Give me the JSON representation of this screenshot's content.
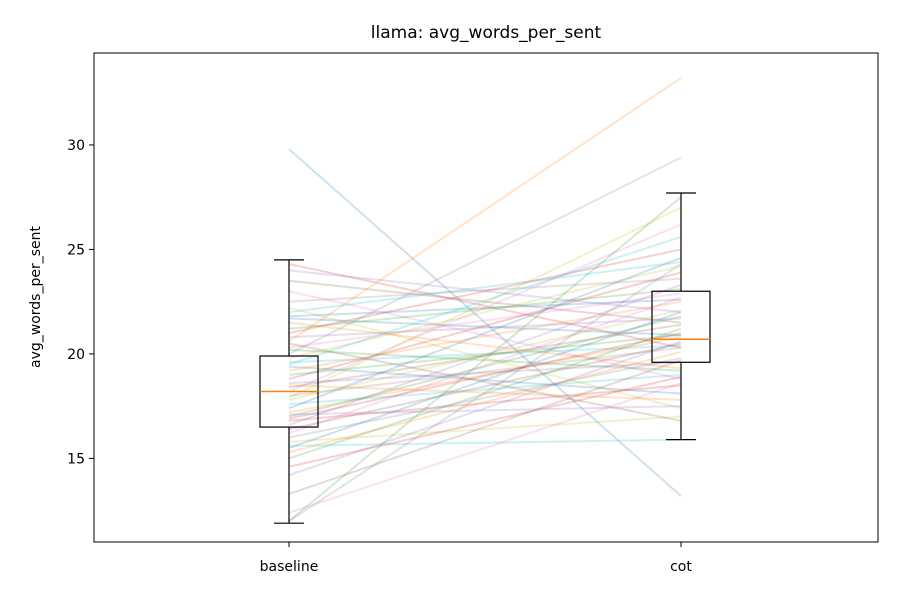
{
  "chart_data": {
    "type": "box-with-paired-lines",
    "title": "llama: avg_words_per_sent",
    "xlabel": "",
    "ylabel": "avg_words_per_sent",
    "categories": [
      "baseline",
      "cot"
    ],
    "ylim": [
      11.0,
      34.4
    ],
    "yticks": [
      15,
      20,
      25,
      30
    ],
    "grid": false,
    "boxes": [
      {
        "category": "baseline",
        "whisker_low": 11.9,
        "q1": 16.5,
        "median": 18.2,
        "q3": 19.9,
        "whisker_high": 24.5
      },
      {
        "category": "cot",
        "whisker_low": 15.9,
        "q1": 19.6,
        "median": 20.7,
        "q3": 23.0,
        "whisker_high": 27.7
      }
    ],
    "pairs": [
      [
        29.8,
        13.2
      ],
      [
        20.6,
        33.2
      ],
      [
        12.0,
        27.5
      ],
      [
        24.3,
        20.3
      ],
      [
        24.0,
        22.0
      ],
      [
        23.5,
        21.5
      ],
      [
        23.0,
        18.8
      ],
      [
        22.5,
        23.6
      ],
      [
        22.2,
        17.4
      ],
      [
        22.0,
        24.4
      ],
      [
        21.7,
        20.9
      ],
      [
        21.5,
        19.3
      ],
      [
        21.2,
        23.1
      ],
      [
        21.0,
        25.0
      ],
      [
        20.8,
        21.7
      ],
      [
        20.5,
        16.8
      ],
      [
        20.3,
        22.9
      ],
      [
        20.0,
        29.4
      ],
      [
        19.8,
        24.2
      ],
      [
        19.6,
        20.4
      ],
      [
        19.4,
        18.1
      ],
      [
        19.2,
        22.5
      ],
      [
        19.0,
        20.9
      ],
      [
        18.8,
        23.9
      ],
      [
        18.6,
        19.6
      ],
      [
        18.4,
        21.4
      ],
      [
        18.2,
        26.2
      ],
      [
        18.0,
        20.3
      ],
      [
        17.8,
        22.1
      ],
      [
        17.6,
        19.0
      ],
      [
        17.4,
        24.6
      ],
      [
        17.2,
        20.8
      ],
      [
        17.0,
        21.8
      ],
      [
        16.8,
        18.5
      ],
      [
        16.6,
        23.3
      ],
      [
        16.4,
        20.5
      ],
      [
        16.2,
        22.7
      ],
      [
        16.0,
        19.8
      ],
      [
        15.8,
        17.0
      ],
      [
        15.6,
        15.9
      ],
      [
        15.5,
        22.0
      ],
      [
        15.3,
        20.1
      ],
      [
        15.0,
        21.2
      ],
      [
        14.6,
        18.9
      ],
      [
        14.2,
        20.6
      ],
      [
        13.3,
        19.7
      ],
      [
        12.4,
        18.6
      ],
      [
        12.0,
        24.3
      ],
      [
        17.9,
        27.0
      ],
      [
        19.5,
        25.6
      ],
      [
        21.8,
        22.6
      ],
      [
        18.5,
        17.8
      ],
      [
        20.2,
        19.2
      ],
      [
        16.9,
        21.0
      ],
      [
        17.1,
        17.5
      ]
    ],
    "series_colors": [
      "#1f77b4",
      "#ff7f0e",
      "#2ca02c",
      "#d62728",
      "#9467bd",
      "#8c564b",
      "#e377c2",
      "#7f7f7f",
      "#bcbd22",
      "#17becf"
    ],
    "median_color": "#ff7f0e"
  }
}
